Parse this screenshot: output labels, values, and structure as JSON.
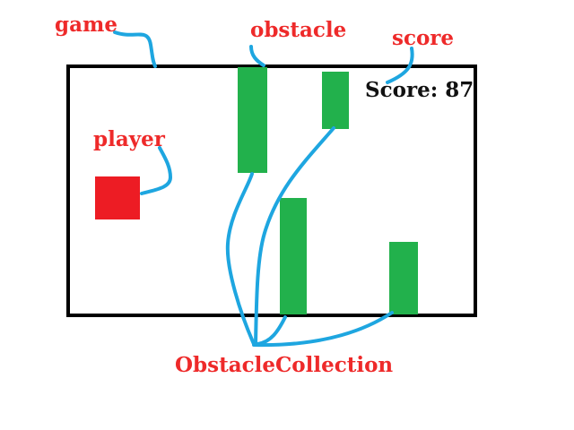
{
  "labels": {
    "game": "game",
    "obstacle": "obstacle",
    "score": "score",
    "player": "player",
    "obstacle_collection": "ObstacleCollection"
  },
  "game_box": {
    "score_text": "Score: 87"
  },
  "colors": {
    "label": "#ee2a2a",
    "connector": "#1ea6e0",
    "obstacle": "#22b14c",
    "player": "#ed1c24",
    "border": "#000000",
    "text": "#111111"
  }
}
